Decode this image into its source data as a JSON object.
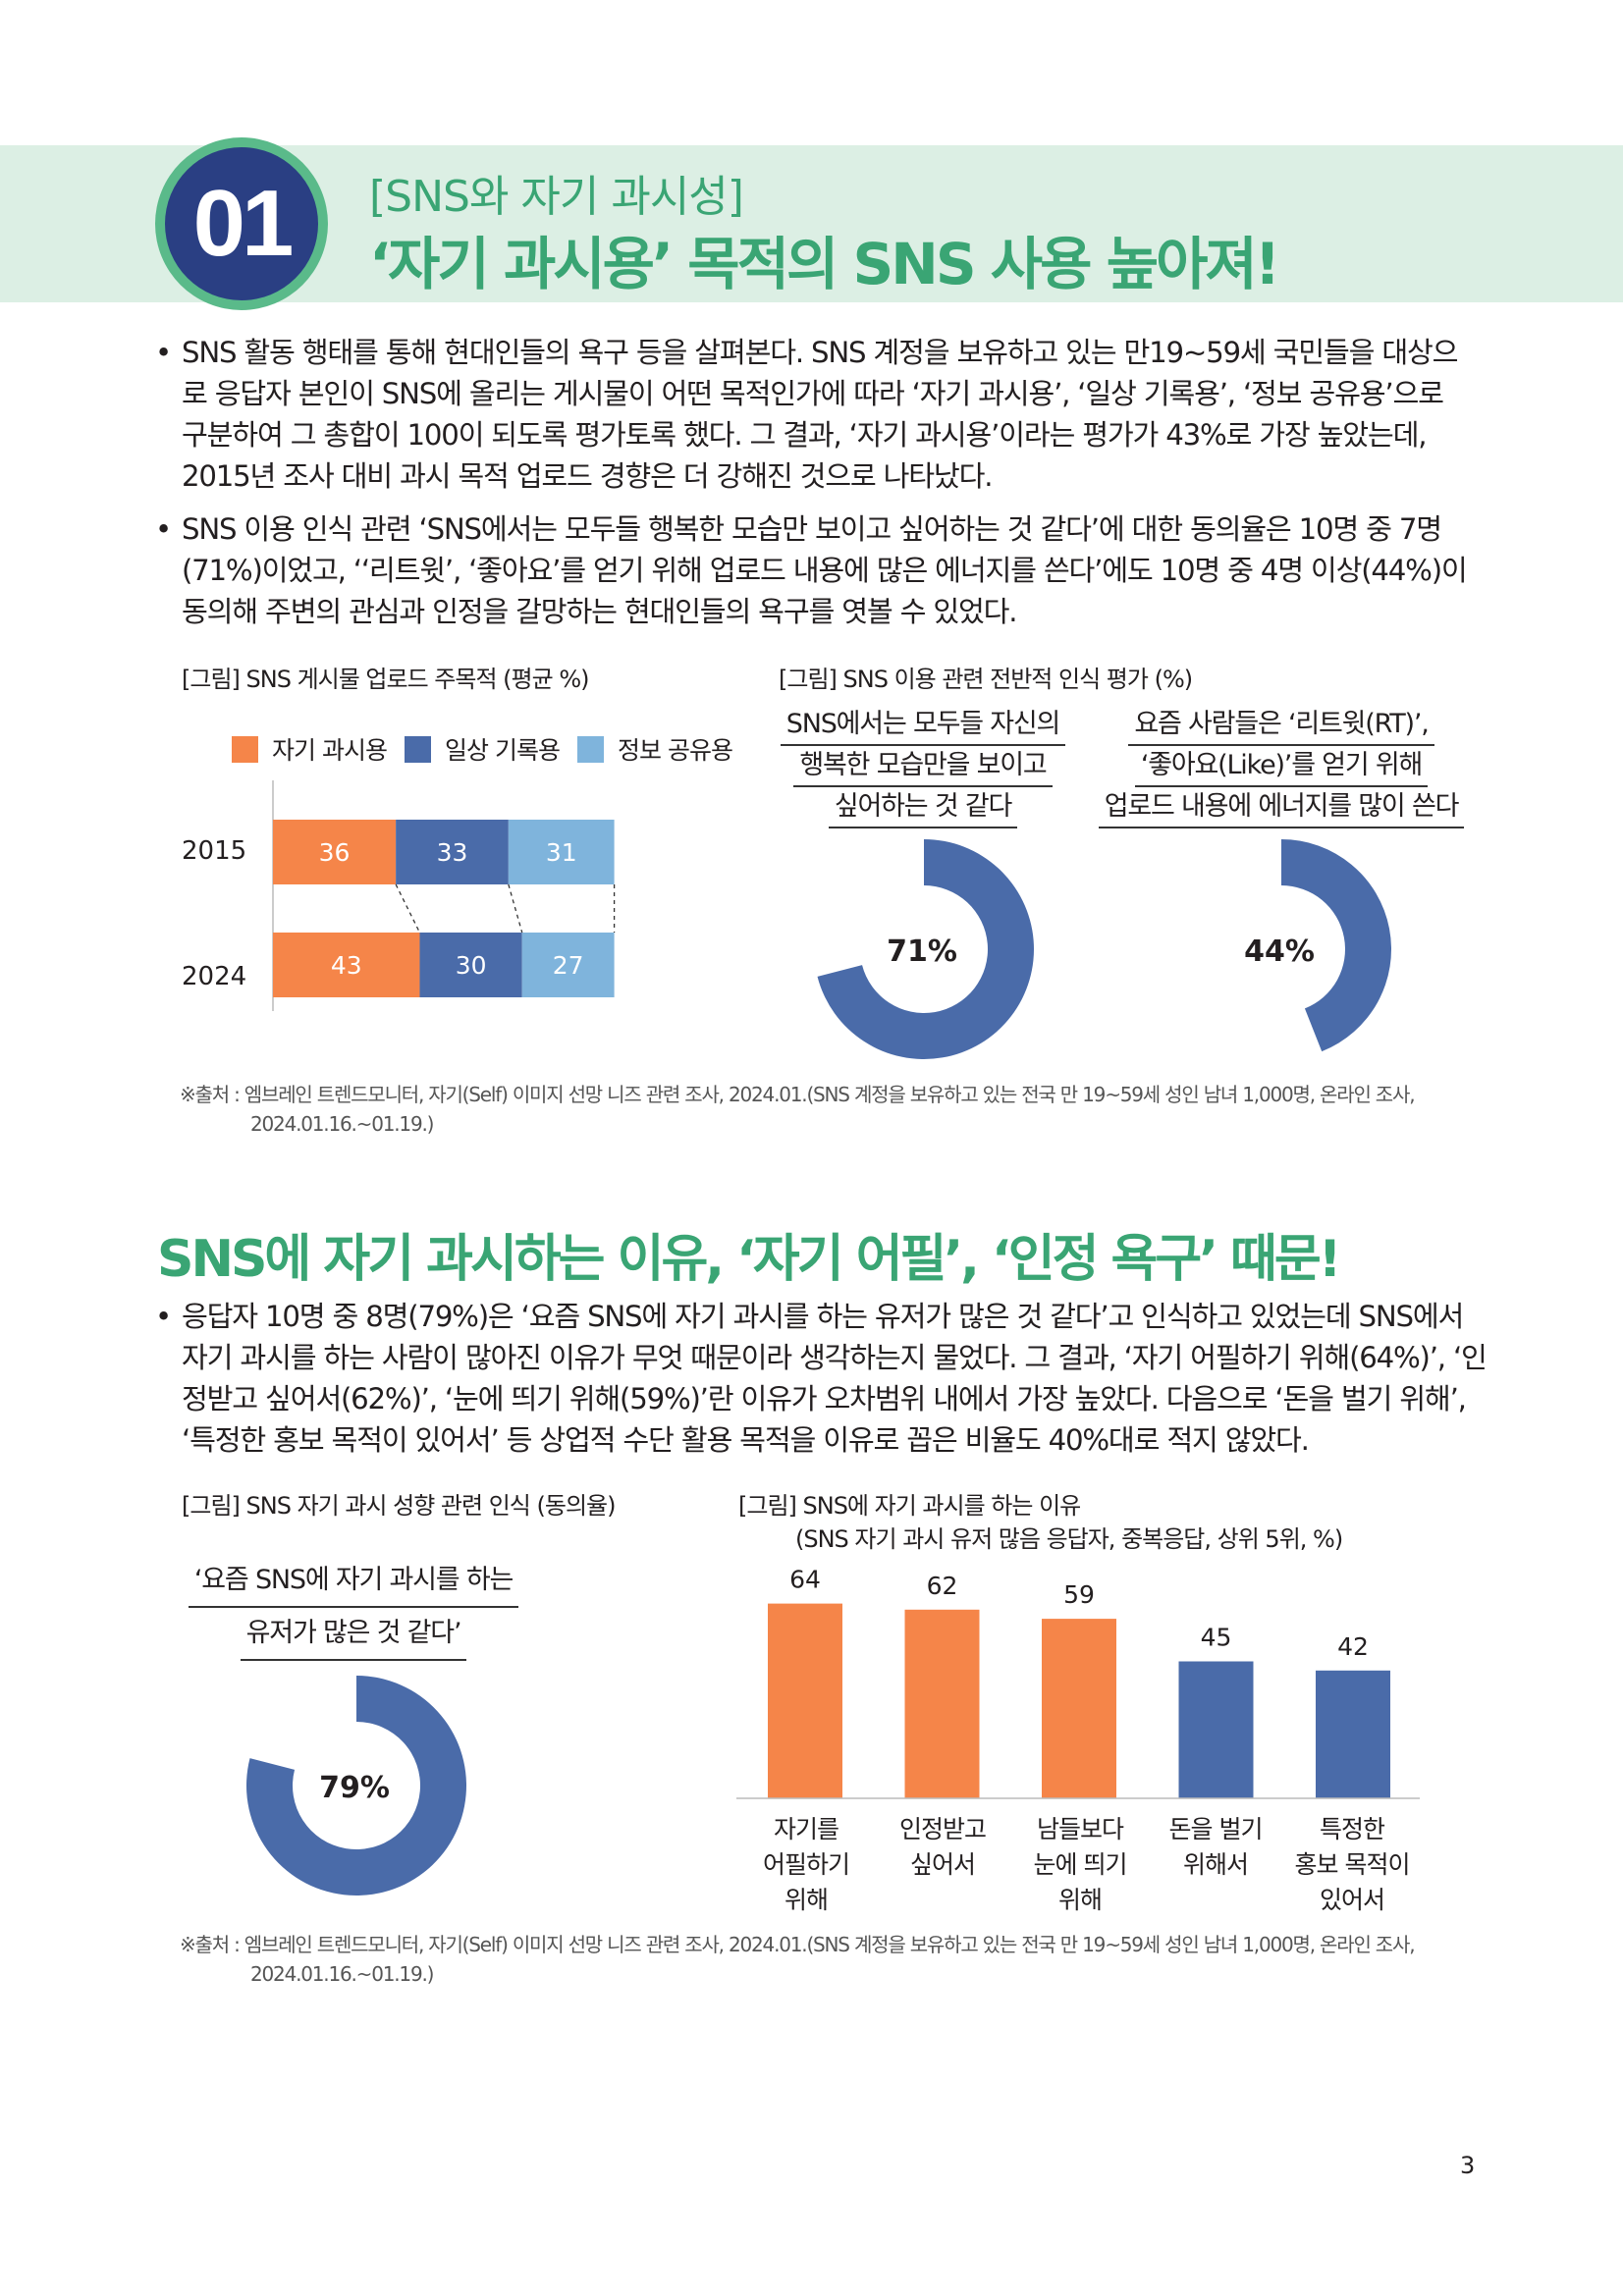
{
  "header": {
    "number": "01",
    "subtitle": "[SNS와 자기 과시성]",
    "title": "‘자기 과시용’ 목적의 SNS 사용 높아져!"
  },
  "section1": {
    "bullets": [
      [
        "SNS 활동 행태를 통해 현대인들의 욕구 등을 살펴본다. SNS 계정을 보유하고 있는 만19~59세 국민들을 대상으",
        "로 응답자 본인이 SNS에 올리는 게시물이 어떤 목적인가에 따라 ‘자기 과시용’, ‘일상 기록용’, ‘정보 공유용’으로",
        "구분하여 그 총합이 100이 되도록 평가토록 했다. 그 결과, ‘자기 과시용’이라는 평가가 43%로 가장 높았는데,",
        "2015년 조사 대비 과시 목적 업로드 경향은 더 강해진 것으로 나타났다."
      ],
      [
        "SNS 이용 인식 관련 ‘SNS에서는 모두들 행복한 모습만 보이고 싶어하는 것 같다’에 대한 동의율은 10명 중 7명",
        "(71%)이었고, ‘‘리트윗’, ‘좋아요’를 얻기 위해 업로드 내용에 많은 에너지를 쓴다’에도 10명 중 4명 이상(44%)이",
        "동의해 주변의 관심과 인정을 갈망하는 현대인들의 욕구를 엿볼 수 있었다."
      ]
    ],
    "bullet_symbol": "•",
    "caption_left": "[그림] SNS 게시물 업로드 주목적 (평균 %)",
    "caption_right": "[그림] SNS 이용 관련 전반적 인식 평가 (%)",
    "source": [
      "※출처 : 엠브레인 트렌드모니터, 자기(Self) 이미지 선망 니즈 관련 조사, 2024.01.(SNS 계정을 보유하고 있는 전국 만 19~59세 성인 남녀 1,000명, 온라인 조사,",
      "2024.01.16.~01.19.)"
    ]
  },
  "section2": {
    "title": "SNS에 자기 과시하는 이유, ‘자기 어필’, ‘인정 욕구’ 때문!",
    "bullet": [
      "응답자 10명 중 8명(79%)은 ‘요즘 SNS에 자기 과시를 하는 유저가 많은 것 같다’고 인식하고 있었는데 SNS에서",
      "자기 과시를 하는 사람이 많아진 이유가 무엇 때문이라 생각하는지 물었다. 그 결과, ‘자기 어필하기 위해(64%)’, ‘인",
      "정받고 싶어서(62%)’, ‘눈에 띄기 위해(59%)’란 이유가 오차범위 내에서 가장 높았다. 다음으로 ‘돈을 벌기 위해’,",
      "‘특정한 홍보 목적이 있어서’ 등 상업적 수단 활용 목적을 이유로 꼽은 비율도 40%대로 적지 않았다."
    ],
    "caption_left": "[그림] SNS 자기 과시 성향 관련 인식 (동의율)",
    "caption_right_1": "[그림] SNS에 자기 과시를 하는 이유",
    "caption_right_2": "(SNS 자기 과시 유저 많음 응답자, 중복응답, 상위 5위, %)",
    "source": [
      "※출처 : 엠브레인 트렌드모니터, 자기(Self) 이미지 선망 니즈 관련 조사, 2024.01.(SNS 계정을 보유하고 있는 전국 만 19~59세 성인 남녀 1,000명, 온라인 조사,",
      "2024.01.16.~01.19.)"
    ]
  },
  "page_number": "3",
  "colors": {
    "orange": "#f58549",
    "blue": "#4a6ba9",
    "light_blue": "#7fb4dc",
    "green": "#3aa574",
    "navy": "#2a3f83"
  },
  "chart_data": [
    {
      "type": "bar",
      "orientation": "horizontal-stacked",
      "categories": [
        "2015",
        "2024"
      ],
      "series": [
        {
          "name": "자기 과시용",
          "values": [
            36,
            43
          ],
          "color": "#f58549"
        },
        {
          "name": "일상 기록용",
          "values": [
            33,
            30
          ],
          "color": "#4a6ba9"
        },
        {
          "name": "정보 공유용",
          "values": [
            31,
            27
          ],
          "color": "#7fb4dc"
        }
      ],
      "legend_position": "top"
    },
    {
      "type": "pie",
      "variant": "donut",
      "title_lines": [
        "SNS에서는 모두들 자신의",
        "행복한 모습만을 보이고",
        "싶어하는 것 같다"
      ],
      "value": 71,
      "label": "71%",
      "color": "#4a6ba9"
    },
    {
      "type": "pie",
      "variant": "donut",
      "title_lines": [
        "요즘 사람들은 ‘리트윗(RT)’,",
        "‘좋아요(Like)’를 얻기 위해",
        "업로드 내용에 에너지를 많이 쓴다"
      ],
      "value": 44,
      "label": "44%",
      "color": "#4a6ba9"
    },
    {
      "type": "pie",
      "variant": "donut",
      "title_lines": [
        "‘요즘 SNS에 자기 과시를 하는",
        "유저가 많은 것 같다’"
      ],
      "value": 79,
      "label": "79%",
      "color": "#4a6ba9"
    },
    {
      "type": "bar",
      "categories": [
        [
          "자기를",
          "어필하기",
          "위해"
        ],
        [
          "인정받고",
          "싶어서"
        ],
        [
          "남들보다",
          "눈에 띄기",
          "위해"
        ],
        [
          "돈을 벌기",
          "위해서"
        ],
        [
          "특정한",
          "홍보 목적이",
          "있어서"
        ]
      ],
      "values": [
        64,
        62,
        59,
        45,
        42
      ],
      "colors": [
        "#f58549",
        "#f58549",
        "#f58549",
        "#4a6ba9",
        "#4a6ba9"
      ],
      "ylim": [
        0,
        100
      ]
    }
  ]
}
